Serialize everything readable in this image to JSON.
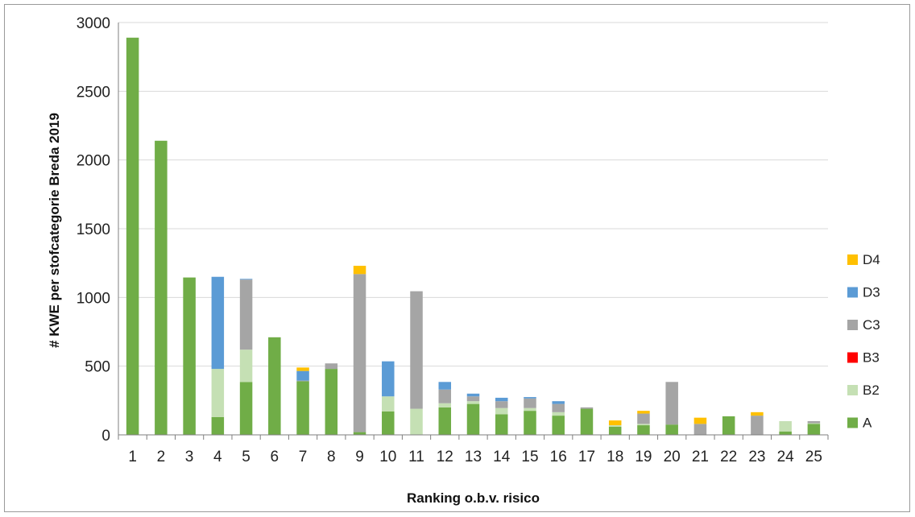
{
  "chart_data": {
    "type": "bar",
    "stacked": true,
    "categories": [
      "1",
      "2",
      "3",
      "4",
      "5",
      "6",
      "7",
      "8",
      "9",
      "10",
      "11",
      "12",
      "13",
      "14",
      "15",
      "16",
      "17",
      "18",
      "19",
      "20",
      "21",
      "22",
      "23",
      "24",
      "25"
    ],
    "series": [
      {
        "name": "A",
        "color": "#70ad47",
        "values": [
          2890,
          2140,
          1145,
          130,
          385,
          710,
          390,
          480,
          20,
          170,
          0,
          200,
          225,
          150,
          175,
          140,
          190,
          60,
          70,
          75,
          0,
          135,
          0,
          25,
          80
        ]
      },
      {
        "name": "B2",
        "color": "#c5e0b4",
        "values": [
          0,
          0,
          0,
          350,
          235,
          0,
          0,
          0,
          0,
          110,
          190,
          30,
          20,
          45,
          20,
          25,
          0,
          10,
          10,
          0,
          0,
          0,
          0,
          75,
          5
        ]
      },
      {
        "name": "B3",
        "color": "#ff0000",
        "values": [
          0,
          0,
          0,
          0,
          0,
          0,
          0,
          0,
          0,
          0,
          0,
          0,
          0,
          0,
          0,
          0,
          0,
          0,
          0,
          0,
          0,
          0,
          0,
          0,
          0
        ]
      },
      {
        "name": "C3",
        "color": "#a5a5a5",
        "values": [
          0,
          0,
          0,
          0,
          510,
          0,
          5,
          40,
          1150,
          0,
          855,
          100,
          35,
          50,
          70,
          60,
          10,
          0,
          75,
          310,
          80,
          0,
          140,
          0,
          15
        ]
      },
      {
        "name": "D3",
        "color": "#5b9bd5",
        "values": [
          0,
          0,
          0,
          670,
          5,
          0,
          70,
          0,
          0,
          255,
          0,
          55,
          20,
          25,
          10,
          20,
          0,
          0,
          0,
          0,
          0,
          0,
          0,
          0,
          0
        ]
      },
      {
        "name": "D4",
        "color": "#ffc000",
        "values": [
          0,
          0,
          0,
          0,
          0,
          0,
          25,
          0,
          60,
          0,
          0,
          0,
          0,
          0,
          0,
          0,
          0,
          35,
          20,
          0,
          45,
          0,
          25,
          0,
          0
        ]
      }
    ],
    "legend_order": [
      "D4",
      "D3",
      "C3",
      "B3",
      "B2",
      "A"
    ],
    "legend_position": "right",
    "xlabel": "Ranking o.b.v. risico",
    "ylabel": "# KWE per stofcategorie Breda 2019",
    "ylim": [
      0,
      3000
    ],
    "yticks": [
      0,
      500,
      1000,
      1500,
      2000,
      2500,
      3000
    ],
    "grid": true
  }
}
